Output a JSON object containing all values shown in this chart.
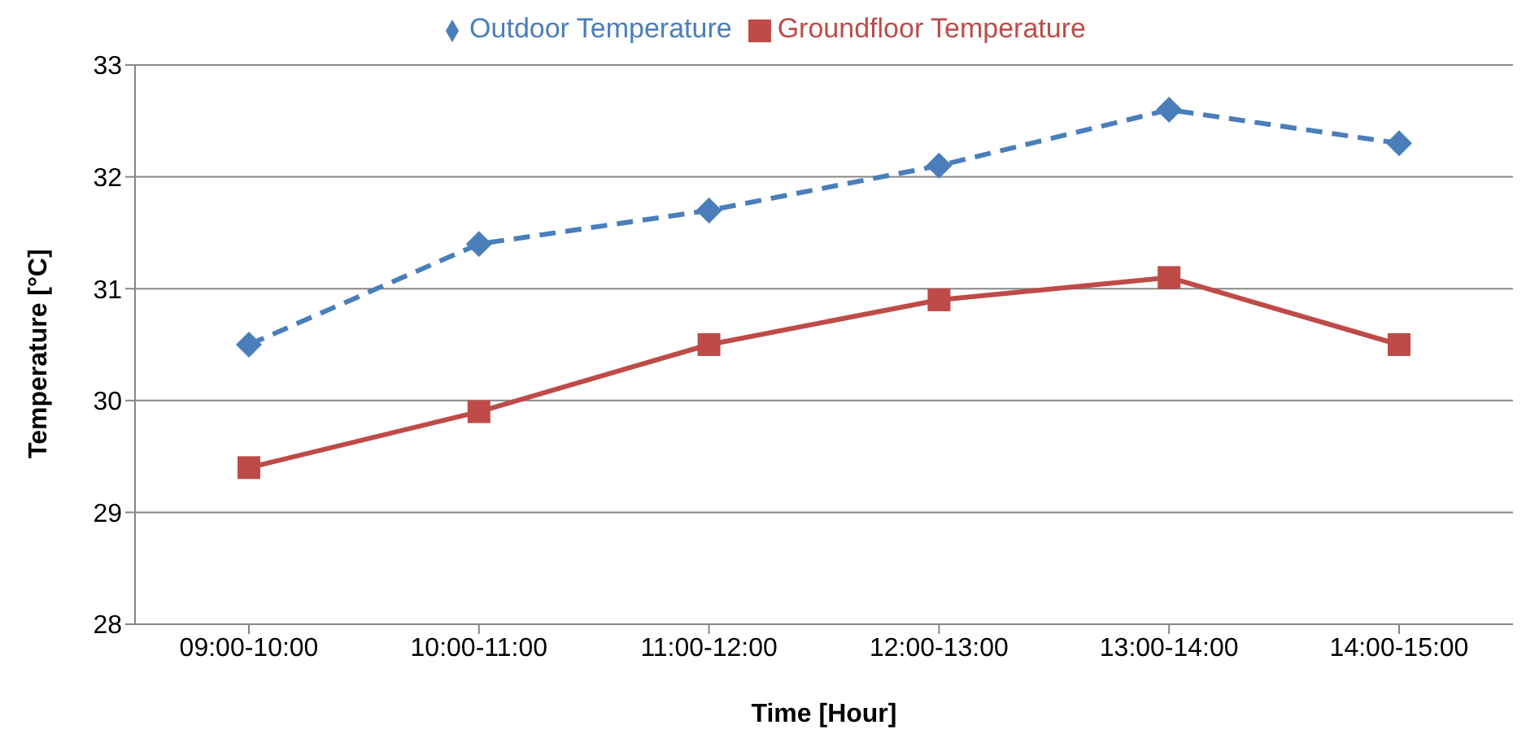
{
  "chart_data": {
    "type": "line",
    "xlabel": "Time [Hour]",
    "ylabel": "Temperature [°C]",
    "categories": [
      "09:00-10:00",
      "10:00-11:00",
      "11:00-12:00",
      "12:00-13:00",
      "13:00-14:00",
      "14:00-15:00"
    ],
    "series": [
      {
        "name": "Outdoor Temperature",
        "color": "#4a7ebb",
        "values": [
          30.5,
          31.4,
          31.7,
          32.1,
          32.6,
          32.3
        ],
        "marker": "diamond",
        "line_style": "dashed"
      },
      {
        "name": "Groundfloor Temperature",
        "color": "#be4b48",
        "values": [
          29.4,
          29.9,
          30.5,
          30.9,
          31.1,
          30.5
        ],
        "marker": "square",
        "line_style": "solid"
      }
    ],
    "ylim": [
      28,
      33
    ],
    "yticks": [
      28,
      29,
      30,
      31,
      32,
      33
    ],
    "grid": "y",
    "legend": "top"
  }
}
